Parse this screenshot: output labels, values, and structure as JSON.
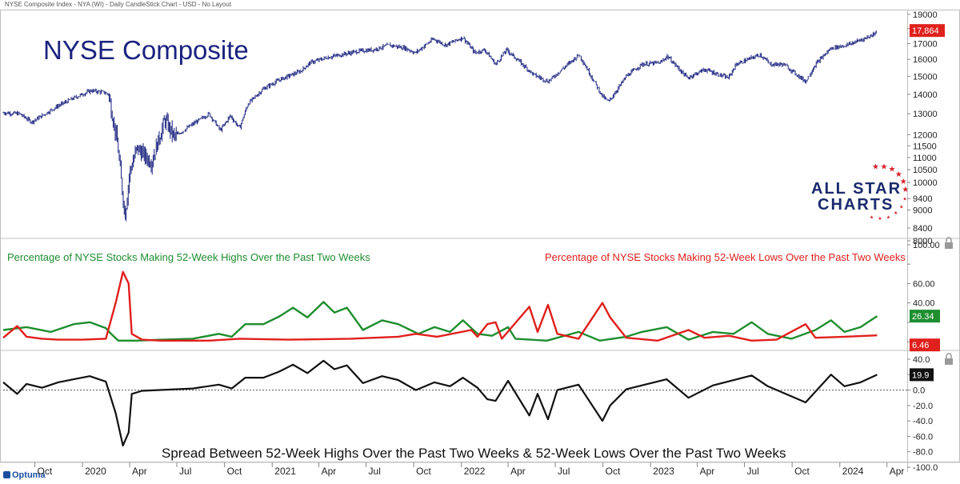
{
  "header": {
    "title": "NYSE Composite Index - NYA (WI) - Daily CandleStick Chart - USD - No Layout"
  },
  "branding": {
    "logo_line1": "ALL STAR",
    "logo_line2": "CHARTS",
    "vendor": "Optuma",
    "colors": {
      "navy": "#1a2a6c",
      "star_red": "#d6202a"
    }
  },
  "x_axis": {
    "ticks": [
      "Oct",
      "2020",
      "Apr",
      "Jul",
      "Oct",
      "2021",
      "Apr",
      "Jul",
      "Oct",
      "2022",
      "Apr",
      "Jul",
      "Oct",
      "2023",
      "Apr",
      "Jul",
      "Oct",
      "2024",
      "Apr"
    ]
  },
  "chart_data": [
    {
      "type": "candlestick",
      "title": "NYSE Composite",
      "color": "#1a237e",
      "y_ticks": [
        19000,
        18000,
        17000,
        16000,
        15000,
        14000,
        13000,
        12000,
        11500,
        11000,
        10500,
        10000,
        9400,
        9000,
        8400,
        8000
      ],
      "last_value": "17,864",
      "last_value_color": "#e0201c",
      "close_path": [
        [
          "2019-08-01",
          13050
        ],
        [
          "2019-09-01",
          13000
        ],
        [
          "2019-09-25",
          12600
        ],
        [
          "2019-10-15",
          12900
        ],
        [
          "2019-11-15",
          13400
        ],
        [
          "2019-12-15",
          13800
        ],
        [
          "2020-01-17",
          14200
        ],
        [
          "2020-02-12",
          14100
        ],
        [
          "2020-02-20",
          14000
        ],
        [
          "2020-03-01",
          12600
        ],
        [
          "2020-03-09",
          11500
        ],
        [
          "2020-03-16",
          10000
        ],
        [
          "2020-03-23",
          8800
        ],
        [
          "2020-04-01",
          10400
        ],
        [
          "2020-04-15",
          11400
        ],
        [
          "2020-05-13",
          10800
        ],
        [
          "2020-06-08",
          12700
        ],
        [
          "2020-06-26",
          11900
        ],
        [
          "2020-08-01",
          12500
        ],
        [
          "2020-09-01",
          13000
        ],
        [
          "2020-09-23",
          12200
        ],
        [
          "2020-10-12",
          12900
        ],
        [
          "2020-10-30",
          12300
        ],
        [
          "2020-11-15",
          13500
        ],
        [
          "2020-12-15",
          14300
        ],
        [
          "2021-01-15",
          14800
        ],
        [
          "2021-02-25",
          15300
        ],
        [
          "2021-03-15",
          15800
        ],
        [
          "2021-04-15",
          16100
        ],
        [
          "2021-05-15",
          16300
        ],
        [
          "2021-06-15",
          16500
        ],
        [
          "2021-07-15",
          16600
        ],
        [
          "2021-08-15",
          16900
        ],
        [
          "2021-09-15",
          16700
        ],
        [
          "2021-10-04",
          16400
        ],
        [
          "2021-11-08",
          17300
        ],
        [
          "2021-12-01",
          16900
        ],
        [
          "2022-01-04",
          17400
        ],
        [
          "2022-01-27",
          16400
        ],
        [
          "2022-02-15",
          16600
        ],
        [
          "2022-03-08",
          15700
        ],
        [
          "2022-03-29",
          16600
        ],
        [
          "2022-05-20",
          15100
        ],
        [
          "2022-06-17",
          14700
        ],
        [
          "2022-08-16",
          16300
        ],
        [
          "2022-09-01",
          15400
        ],
        [
          "2022-09-30",
          13900
        ],
        [
          "2022-10-12",
          13600
        ],
        [
          "2022-11-15",
          15000
        ],
        [
          "2022-12-15",
          15700
        ],
        [
          "2023-01-20",
          15800
        ],
        [
          "2023-02-02",
          16200
        ],
        [
          "2023-03-13",
          14900
        ],
        [
          "2023-04-15",
          15400
        ],
        [
          "2023-05-31",
          14900
        ],
        [
          "2023-06-15",
          15700
        ],
        [
          "2023-07-31",
          16300
        ],
        [
          "2023-08-20",
          15700
        ],
        [
          "2023-09-15",
          15700
        ],
        [
          "2023-10-27",
          14700
        ],
        [
          "2023-11-15",
          15700
        ],
        [
          "2023-12-15",
          16700
        ],
        [
          "2024-01-15",
          16900
        ],
        [
          "2024-02-15",
          17300
        ],
        [
          "2024-03-01",
          17500
        ],
        [
          "2024-03-13",
          17864
        ]
      ]
    },
    {
      "type": "line",
      "y_ticks": [
        100,
        80,
        60,
        40,
        20,
        0
      ],
      "y_tick_labels": [
        "100.00",
        "",
        "60.00",
        "40.00",
        "",
        "0.00"
      ],
      "series": [
        {
          "name": "Percentage of NYSE Stocks Making 52-Week Highs Over the Past Two Weeks",
          "color": "#1e8e2f",
          "last_value": "26.34",
          "points": [
            [
              "2019-08-01",
              12
            ],
            [
              "2019-09-15",
              15
            ],
            [
              "2019-11-01",
              10
            ],
            [
              "2019-12-15",
              18
            ],
            [
              "2020-01-15",
              20
            ],
            [
              "2020-02-15",
              14
            ],
            [
              "2020-02-25",
              8
            ],
            [
              "2020-03-10",
              1
            ],
            [
              "2020-04-15",
              1
            ],
            [
              "2020-06-01",
              2
            ],
            [
              "2020-08-01",
              3
            ],
            [
              "2020-09-20",
              8
            ],
            [
              "2020-10-15",
              5
            ],
            [
              "2020-11-10",
              18
            ],
            [
              "2020-12-15",
              18
            ],
            [
              "2021-01-15",
              26
            ],
            [
              "2021-02-10",
              35
            ],
            [
              "2021-03-10",
              25
            ],
            [
              "2021-04-10",
              41
            ],
            [
              "2021-05-01",
              30
            ],
            [
              "2021-05-25",
              35
            ],
            [
              "2021-06-25",
              12
            ],
            [
              "2021-08-01",
              22
            ],
            [
              "2021-09-01",
              18
            ],
            [
              "2021-10-10",
              8
            ],
            [
              "2021-11-10",
              15
            ],
            [
              "2021-12-10",
              10
            ],
            [
              "2022-01-04",
              22
            ],
            [
              "2022-02-01",
              8
            ],
            [
              "2022-03-01",
              6
            ],
            [
              "2022-04-01",
              15
            ],
            [
              "2022-04-15",
              3
            ],
            [
              "2022-06-15",
              1
            ],
            [
              "2022-08-15",
              10
            ],
            [
              "2022-09-25",
              1
            ],
            [
              "2022-11-15",
              5
            ],
            [
              "2022-12-15",
              10
            ],
            [
              "2023-02-01",
              15
            ],
            [
              "2023-03-15",
              2
            ],
            [
              "2023-05-01",
              10
            ],
            [
              "2023-06-10",
              8
            ],
            [
              "2023-07-15",
              20
            ],
            [
              "2023-08-15",
              8
            ],
            [
              "2023-09-30",
              3
            ],
            [
              "2023-11-15",
              12
            ],
            [
              "2023-12-15",
              22
            ],
            [
              "2024-01-10",
              10
            ],
            [
              "2024-02-10",
              15
            ],
            [
              "2024-03-13",
              26.34
            ]
          ]
        },
        {
          "name": "Percentage of NYSE Stocks Making 52-Week Lows Over the Past Two Weeks",
          "color": "#e0201c",
          "last_value": "6.46",
          "points": [
            [
              "2019-08-01",
              4
            ],
            [
              "2019-08-28",
              16
            ],
            [
              "2019-09-15",
              5
            ],
            [
              "2019-10-15",
              3
            ],
            [
              "2019-11-15",
              2
            ],
            [
              "2020-01-01",
              2
            ],
            [
              "2020-02-15",
              3
            ],
            [
              "2020-03-05",
              40
            ],
            [
              "2020-03-19",
              72
            ],
            [
              "2020-03-30",
              60
            ],
            [
              "2020-04-05",
              8
            ],
            [
              "2020-04-25",
              2
            ],
            [
              "2020-06-01",
              1
            ],
            [
              "2020-09-01",
              1
            ],
            [
              "2020-10-30",
              3
            ],
            [
              "2021-02-01",
              2
            ],
            [
              "2021-06-01",
              3
            ],
            [
              "2021-09-01",
              5
            ],
            [
              "2021-10-05",
              8
            ],
            [
              "2021-11-15",
              5
            ],
            [
              "2022-01-20",
              12
            ],
            [
              "2022-02-01",
              5
            ],
            [
              "2022-02-20",
              18
            ],
            [
              "2022-03-08",
              20
            ],
            [
              "2022-03-20",
              3
            ],
            [
              "2022-05-12",
              36
            ],
            [
              "2022-05-28",
              10
            ],
            [
              "2022-06-17",
              38
            ],
            [
              "2022-07-05",
              8
            ],
            [
              "2022-08-15",
              3
            ],
            [
              "2022-09-30",
              40
            ],
            [
              "2022-10-15",
              25
            ],
            [
              "2022-11-15",
              4
            ],
            [
              "2023-01-15",
              1
            ],
            [
              "2023-03-15",
              12
            ],
            [
              "2023-04-15",
              4
            ],
            [
              "2023-06-01",
              6
            ],
            [
              "2023-07-15",
              1
            ],
            [
              "2023-09-01",
              2
            ],
            [
              "2023-10-27",
              18
            ],
            [
              "2023-11-15",
              4
            ],
            [
              "2024-01-10",
              5
            ],
            [
              "2024-03-13",
              6.46
            ]
          ]
        }
      ]
    },
    {
      "type": "line",
      "title": "Spread Between 52-Week Highs Over the Past Two Weeks & 52-Week Lows Over the Past Two Weeks",
      "color": "#111111",
      "reference_line": 0,
      "y_ticks": [
        40,
        20,
        0,
        -20,
        -40,
        -60,
        -80,
        -100
      ],
      "y_tick_labels": [
        "40.0",
        "20.0",
        "0.0",
        "-20.0",
        "-40.0",
        "-60.0",
        "-80.0",
        "-100.0"
      ],
      "last_value": "19.9",
      "points": [
        [
          "2019-08-01",
          10
        ],
        [
          "2019-08-28",
          -5
        ],
        [
          "2019-09-15",
          8
        ],
        [
          "2019-10-15",
          3
        ],
        [
          "2019-11-15",
          10
        ],
        [
          "2019-12-15",
          14
        ],
        [
          "2020-01-15",
          18
        ],
        [
          "2020-02-15",
          11
        ],
        [
          "2020-03-05",
          -30
        ],
        [
          "2020-03-19",
          -72
        ],
        [
          "2020-03-30",
          -55
        ],
        [
          "2020-04-05",
          -5
        ],
        [
          "2020-04-25",
          -1
        ],
        [
          "2020-08-01",
          2
        ],
        [
          "2020-09-20",
          7
        ],
        [
          "2020-10-15",
          2
        ],
        [
          "2020-11-10",
          16
        ],
        [
          "2020-12-15",
          16
        ],
        [
          "2021-01-15",
          24
        ],
        [
          "2021-02-10",
          33
        ],
        [
          "2021-03-10",
          22
        ],
        [
          "2021-04-10",
          38
        ],
        [
          "2021-05-01",
          27
        ],
        [
          "2021-05-25",
          32
        ],
        [
          "2021-06-25",
          9
        ],
        [
          "2021-08-01",
          18
        ],
        [
          "2021-09-01",
          13
        ],
        [
          "2021-10-05",
          0
        ],
        [
          "2021-11-10",
          10
        ],
        [
          "2021-12-10",
          5
        ],
        [
          "2022-01-04",
          16
        ],
        [
          "2022-02-01",
          3
        ],
        [
          "2022-02-20",
          -12
        ],
        [
          "2022-03-08",
          -14
        ],
        [
          "2022-04-01",
          12
        ],
        [
          "2022-05-12",
          -33
        ],
        [
          "2022-05-28",
          -5
        ],
        [
          "2022-06-17",
          -38
        ],
        [
          "2022-07-05",
          0
        ],
        [
          "2022-08-15",
          7
        ],
        [
          "2022-09-30",
          -40
        ],
        [
          "2022-10-15",
          -20
        ],
        [
          "2022-11-15",
          1
        ],
        [
          "2023-02-01",
          14
        ],
        [
          "2023-03-15",
          -10
        ],
        [
          "2023-05-01",
          6
        ],
        [
          "2023-07-15",
          19
        ],
        [
          "2023-08-15",
          5
        ],
        [
          "2023-10-27",
          -16
        ],
        [
          "2023-12-15",
          20
        ],
        [
          "2024-01-10",
          5
        ],
        [
          "2024-02-10",
          10
        ],
        [
          "2024-03-13",
          19.9
        ]
      ]
    }
  ]
}
